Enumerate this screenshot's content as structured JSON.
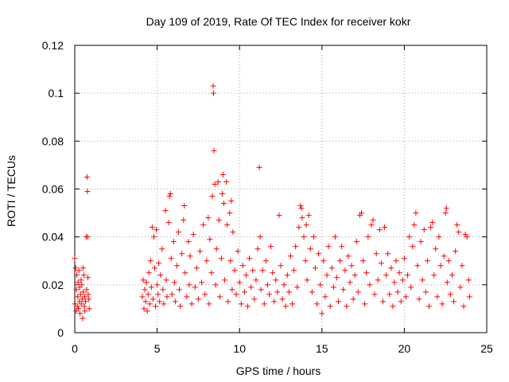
{
  "chart_data": {
    "type": "scatter",
    "title": "Day 109 of 2019, Rate Of TEC Index for receiver kokr",
    "xlabel": "GPS time / hours",
    "ylabel": "ROTI / TECUs",
    "xlim": [
      0,
      25
    ],
    "ylim": [
      0,
      0.12
    ],
    "xticks": [
      0,
      5,
      10,
      15,
      20,
      25
    ],
    "xtick_labels": [
      "0",
      "5",
      "10",
      "15",
      "20",
      "25"
    ],
    "yticks": [
      0,
      0.02,
      0.04,
      0.06,
      0.08,
      0.1,
      0.12
    ],
    "ytick_labels": [
      "0",
      "0.02",
      "0.04",
      "0.06",
      "0.08",
      "0.1",
      "0.12"
    ],
    "grid": true,
    "marker": "plus",
    "color": "#ff0000",
    "series": [
      {
        "name": "ROTI",
        "points": [
          [
            0.0,
            0.031
          ],
          [
            0.02,
            0.012
          ],
          [
            0.05,
            0.027
          ],
          [
            0.08,
            0.009
          ],
          [
            0.1,
            0.018
          ],
          [
            0.12,
            0.024
          ],
          [
            0.15,
            0.011
          ],
          [
            0.18,
            0.015
          ],
          [
            0.2,
            0.021
          ],
          [
            0.22,
            0.01
          ],
          [
            0.25,
            0.026
          ],
          [
            0.28,
            0.013
          ],
          [
            0.3,
            0.019
          ],
          [
            0.32,
            0.008
          ],
          [
            0.35,
            0.016
          ],
          [
            0.38,
            0.022
          ],
          [
            0.4,
            0.012
          ],
          [
            0.42,
            0.02
          ],
          [
            0.45,
            0.014
          ],
          [
            0.48,
            0.006
          ],
          [
            0.5,
            0.027
          ],
          [
            0.52,
            0.017
          ],
          [
            0.55,
            0.024
          ],
          [
            0.58,
            0.011
          ],
          [
            0.6,
            0.015
          ],
          [
            0.62,
            0.009
          ],
          [
            0.65,
            0.013
          ],
          [
            0.7,
            0.04
          ],
          [
            0.72,
            0.018
          ],
          [
            0.75,
            0.065
          ],
          [
            0.77,
            0.059
          ],
          [
            0.78,
            0.04
          ],
          [
            0.8,
            0.023
          ],
          [
            0.82,
            0.016
          ],
          [
            0.85,
            0.014
          ],
          [
            0.88,
            0.01
          ],
          [
            4.1,
            0.015
          ],
          [
            4.15,
            0.022
          ],
          [
            4.2,
            0.01
          ],
          [
            4.25,
            0.018
          ],
          [
            4.3,
            0.013
          ],
          [
            4.35,
            0.021
          ],
          [
            4.4,
            0.009
          ],
          [
            4.45,
            0.016
          ],
          [
            4.5,
            0.025
          ],
          [
            4.55,
            0.012
          ],
          [
            4.6,
            0.03
          ],
          [
            4.65,
            0.019
          ],
          [
            4.7,
            0.044
          ],
          [
            4.75,
            0.014
          ],
          [
            4.8,
            0.04
          ],
          [
            4.85,
            0.027
          ],
          [
            4.9,
            0.011
          ],
          [
            4.95,
            0.043
          ],
          [
            5.0,
            0.02
          ],
          [
            5.05,
            0.016
          ],
          [
            5.1,
            0.029
          ],
          [
            5.15,
            0.013
          ],
          [
            5.2,
            0.024
          ],
          [
            5.3,
            0.035
          ],
          [
            5.35,
            0.018
          ],
          [
            5.4,
            0.012
          ],
          [
            5.5,
            0.051
          ],
          [
            5.55,
            0.022
          ],
          [
            5.6,
            0.015
          ],
          [
            5.7,
            0.046
          ],
          [
            5.75,
            0.057
          ],
          [
            5.8,
            0.058
          ],
          [
            5.85,
            0.031
          ],
          [
            5.9,
            0.016
          ],
          [
            6.0,
            0.038
          ],
          [
            6.05,
            0.021
          ],
          [
            6.1,
            0.013
          ],
          [
            6.2,
            0.028
          ],
          [
            6.3,
            0.042
          ],
          [
            6.35,
            0.018
          ],
          [
            6.4,
            0.011
          ],
          [
            6.5,
            0.033
          ],
          [
            6.6,
            0.047
          ],
          [
            6.65,
            0.053
          ],
          [
            6.7,
            0.025
          ],
          [
            6.8,
            0.015
          ],
          [
            6.9,
            0.038
          ],
          [
            6.95,
            0.02
          ],
          [
            7.0,
            0.032
          ],
          [
            7.1,
            0.012
          ],
          [
            7.2,
            0.041
          ],
          [
            7.3,
            0.019
          ],
          [
            7.4,
            0.027
          ],
          [
            7.5,
            0.014
          ],
          [
            7.6,
            0.034
          ],
          [
            7.7,
            0.021
          ],
          [
            7.8,
            0.045
          ],
          [
            7.9,
            0.016
          ],
          [
            8.0,
            0.03
          ],
          [
            8.1,
            0.048
          ],
          [
            8.15,
            0.012
          ],
          [
            8.2,
            0.039
          ],
          [
            8.3,
            0.025
          ],
          [
            8.35,
            0.057
          ],
          [
            8.4,
            0.103
          ],
          [
            8.42,
            0.1
          ],
          [
            8.45,
            0.076
          ],
          [
            8.5,
            0.062
          ],
          [
            8.55,
            0.02
          ],
          [
            8.6,
            0.035
          ],
          [
            8.7,
            0.063
          ],
          [
            8.75,
            0.047
          ],
          [
            8.8,
            0.015
          ],
          [
            8.9,
            0.031
          ],
          [
            8.95,
            0.058
          ],
          [
            9.0,
            0.066
          ],
          [
            9.05,
            0.054
          ],
          [
            9.1,
            0.022
          ],
          [
            9.2,
            0.063
          ],
          [
            9.25,
            0.045
          ],
          [
            9.3,
            0.013
          ],
          [
            9.4,
            0.05
          ],
          [
            9.45,
            0.03
          ],
          [
            9.5,
            0.055
          ],
          [
            9.55,
            0.018
          ],
          [
            9.6,
            0.042
          ],
          [
            9.7,
            0.026
          ],
          [
            9.8,
            0.016
          ],
          [
            9.9,
            0.034
          ],
          [
            10.0,
            0.021
          ],
          [
            10.1,
            0.012
          ],
          [
            10.2,
            0.028
          ],
          [
            10.3,
            0.017
          ],
          [
            10.4,
            0.024
          ],
          [
            10.5,
            0.011
          ],
          [
            10.6,
            0.031
          ],
          [
            10.7,
            0.019
          ],
          [
            10.8,
            0.026
          ],
          [
            10.9,
            0.014
          ],
          [
            11.0,
            0.022
          ],
          [
            11.1,
            0.035
          ],
          [
            11.2,
            0.069
          ],
          [
            11.25,
            0.04
          ],
          [
            11.3,
            0.018
          ],
          [
            11.4,
            0.026
          ],
          [
            11.5,
            0.012
          ],
          [
            11.6,
            0.03
          ],
          [
            11.7,
            0.02
          ],
          [
            11.8,
            0.016
          ],
          [
            11.9,
            0.036
          ],
          [
            12.0,
            0.025
          ],
          [
            12.1,
            0.013
          ],
          [
            12.2,
            0.022
          ],
          [
            12.3,
            0.017
          ],
          [
            12.4,
            0.049
          ],
          [
            12.5,
            0.028
          ],
          [
            12.6,
            0.014
          ],
          [
            12.7,
            0.02
          ],
          [
            12.8,
            0.011
          ],
          [
            12.9,
            0.024
          ],
          [
            13.0,
            0.017
          ],
          [
            13.1,
            0.032
          ],
          [
            13.2,
            0.012
          ],
          [
            13.3,
            0.026
          ],
          [
            13.4,
            0.036
          ],
          [
            13.5,
            0.019
          ],
          [
            13.6,
            0.044
          ],
          [
            13.7,
            0.053
          ],
          [
            13.75,
            0.052
          ],
          [
            13.8,
            0.048
          ],
          [
            13.9,
            0.04
          ],
          [
            14.0,
            0.03
          ],
          [
            14.05,
            0.045
          ],
          [
            14.1,
            0.022
          ],
          [
            14.2,
            0.049
          ],
          [
            14.3,
            0.035
          ],
          [
            14.4,
            0.017
          ],
          [
            14.5,
            0.04
          ],
          [
            14.6,
            0.027
          ],
          [
            14.7,
            0.012
          ],
          [
            14.8,
            0.033
          ],
          [
            14.9,
            0.02
          ],
          [
            15.0,
            0.008
          ],
          [
            15.1,
            0.03
          ],
          [
            15.2,
            0.015
          ],
          [
            15.3,
            0.024
          ],
          [
            15.4,
            0.036
          ],
          [
            15.5,
            0.011
          ],
          [
            15.6,
            0.027
          ],
          [
            15.7,
            0.019
          ],
          [
            15.8,
            0.04
          ],
          [
            15.9,
            0.023
          ],
          [
            16.0,
            0.013
          ],
          [
            16.1,
            0.03
          ],
          [
            16.2,
            0.036
          ],
          [
            16.3,
            0.018
          ],
          [
            16.4,
            0.026
          ],
          [
            16.5,
            0.011
          ],
          [
            16.6,
            0.032
          ],
          [
            16.7,
            0.021
          ],
          [
            16.8,
            0.028
          ],
          [
            16.9,
            0.014
          ],
          [
            17.0,
            0.024
          ],
          [
            17.1,
            0.038
          ],
          [
            17.2,
            0.017
          ],
          [
            17.3,
            0.049
          ],
          [
            17.4,
            0.05
          ],
          [
            17.5,
            0.03
          ],
          [
            17.6,
            0.012
          ],
          [
            17.7,
            0.025
          ],
          [
            17.8,
            0.04
          ],
          [
            17.9,
            0.02
          ],
          [
            18.0,
            0.045
          ],
          [
            18.1,
            0.047
          ],
          [
            18.2,
            0.016
          ],
          [
            18.3,
            0.033
          ],
          [
            18.4,
            0.022
          ],
          [
            18.5,
            0.043
          ],
          [
            18.6,
            0.029
          ],
          [
            18.7,
            0.013
          ],
          [
            18.8,
            0.044
          ],
          [
            18.9,
            0.024
          ],
          [
            19.0,
            0.033
          ],
          [
            19.1,
            0.016
          ],
          [
            19.2,
            0.027
          ],
          [
            19.3,
            0.011
          ],
          [
            19.4,
            0.021
          ],
          [
            19.5,
            0.03
          ],
          [
            19.6,
            0.017
          ],
          [
            19.7,
            0.025
          ],
          [
            19.8,
            0.013
          ],
          [
            19.9,
            0.022
          ],
          [
            20.0,
            0.031
          ],
          [
            20.1,
            0.015
          ],
          [
            20.2,
            0.024
          ],
          [
            20.3,
            0.04
          ],
          [
            20.4,
            0.019
          ],
          [
            20.5,
            0.036
          ],
          [
            20.6,
            0.045
          ],
          [
            20.7,
            0.05
          ],
          [
            20.8,
            0.028
          ],
          [
            20.9,
            0.014
          ],
          [
            21.0,
            0.038
          ],
          [
            21.1,
            0.022
          ],
          [
            21.2,
            0.043
          ],
          [
            21.3,
            0.017
          ],
          [
            21.4,
            0.03
          ],
          [
            21.5,
            0.011
          ],
          [
            21.6,
            0.044
          ],
          [
            21.7,
            0.046
          ],
          [
            21.8,
            0.024
          ],
          [
            21.9,
            0.035
          ],
          [
            22.0,
            0.015
          ],
          [
            22.1,
            0.04
          ],
          [
            22.2,
            0.028
          ],
          [
            22.3,
            0.012
          ],
          [
            22.4,
            0.032
          ],
          [
            22.5,
            0.05
          ],
          [
            22.55,
            0.052
          ],
          [
            22.6,
            0.021
          ],
          [
            22.7,
            0.03
          ],
          [
            22.8,
            0.016
          ],
          [
            22.9,
            0.024
          ],
          [
            23.0,
            0.013
          ],
          [
            23.1,
            0.034
          ],
          [
            23.2,
            0.045
          ],
          [
            23.3,
            0.042
          ],
          [
            23.4,
            0.019
          ],
          [
            23.5,
            0.028
          ],
          [
            23.6,
            0.011
          ],
          [
            23.7,
            0.041
          ],
          [
            23.8,
            0.04
          ],
          [
            23.9,
            0.022
          ],
          [
            23.95,
            0.015
          ]
        ]
      }
    ]
  }
}
